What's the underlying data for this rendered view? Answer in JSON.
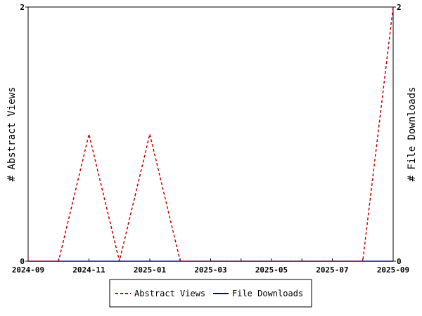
{
  "chart_data": {
    "type": "line",
    "x": [
      "2024-09",
      "2024-10",
      "2024-11",
      "2024-12",
      "2025-01",
      "2025-02",
      "2025-03",
      "2025-04",
      "2025-05",
      "2025-06",
      "2025-07",
      "2025-08",
      "2025-09"
    ],
    "x_tick_labels": [
      "2024-09",
      "2024-11",
      "2025-01",
      "2025-03",
      "2025-05",
      "2025-07",
      "2025-09"
    ],
    "series": [
      {
        "name": "Abstract Views",
        "values": [
          0,
          0,
          1,
          0,
          1,
          0,
          0,
          0,
          0,
          0,
          0,
          0,
          2
        ],
        "color": "#cc0000",
        "dash": "dashed"
      },
      {
        "name": "File Downloads",
        "values": [
          0,
          0,
          0,
          0,
          0,
          0,
          0,
          0,
          0,
          0,
          0,
          0,
          0
        ],
        "color": "#000099",
        "dash": "solid"
      }
    ],
    "ylabel": "# Abstract Views",
    "y2label": "# File Downloads",
    "ylim": [
      0,
      2
    ],
    "y_tick_labels": [
      "0",
      "2"
    ],
    "y2_tick_labels": [
      "0",
      "2"
    ],
    "grid": false,
    "legend_placement": "bottom"
  }
}
